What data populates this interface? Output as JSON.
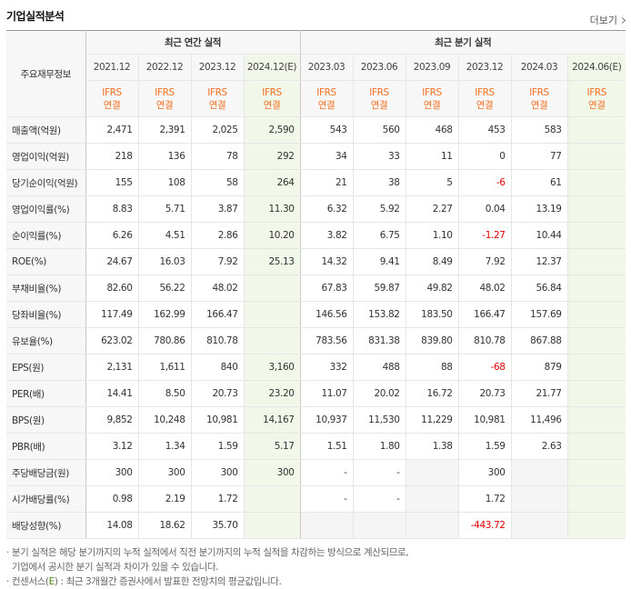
{
  "section_title": "기업실적분석",
  "more_link": "더보기",
  "header": {
    "item_label": "주요재무정보",
    "annual_group": "최근 연간 실적",
    "quarter_group": "최근 분기 실적",
    "annual_periods": [
      "2021.12",
      "2022.12",
      "2023.12",
      "2024.12(E)"
    ],
    "quarter_periods": [
      "2023.03",
      "2023.06",
      "2023.09",
      "2023.12",
      "2024.03",
      "2024.06(E)"
    ],
    "basis_top": "IFRS",
    "basis_bottom": "연결"
  },
  "rows": [
    {
      "label": "매출액(억원)",
      "annual": [
        "2,471",
        "2,391",
        "2,025",
        "2,590"
      ],
      "quarter": [
        "543",
        "560",
        "468",
        "453",
        "583",
        ""
      ]
    },
    {
      "label": "영업이익(억원)",
      "annual": [
        "218",
        "136",
        "78",
        "292"
      ],
      "quarter": [
        "34",
        "33",
        "11",
        "0",
        "77",
        ""
      ]
    },
    {
      "label": "당기순이익(억원)",
      "annual": [
        "155",
        "108",
        "58",
        "264"
      ],
      "quarter": [
        "21",
        "38",
        "5",
        "-6",
        "61",
        ""
      ]
    },
    {
      "label": "영업이익률(%)",
      "annual": [
        "8.83",
        "5.71",
        "3.87",
        "11.30"
      ],
      "quarter": [
        "6.32",
        "5.92",
        "2.27",
        "0.04",
        "13.19",
        ""
      ]
    },
    {
      "label": "순이익률(%)",
      "annual": [
        "6.26",
        "4.51",
        "2.86",
        "10.20"
      ],
      "quarter": [
        "3.82",
        "6.75",
        "1.10",
        "-1.27",
        "10.44",
        ""
      ]
    },
    {
      "label": "ROE(%)",
      "annual": [
        "24.67",
        "16.03",
        "7.92",
        "25.13"
      ],
      "quarter": [
        "14.32",
        "9.41",
        "8.49",
        "7.92",
        "12.37",
        ""
      ]
    },
    {
      "label": "부채비율(%)",
      "annual": [
        "82.60",
        "56.22",
        "48.02",
        ""
      ],
      "quarter": [
        "67.83",
        "59.87",
        "49.82",
        "48.02",
        "56.84",
        ""
      ]
    },
    {
      "label": "당좌비율(%)",
      "annual": [
        "117.49",
        "162.99",
        "166.47",
        ""
      ],
      "quarter": [
        "146.56",
        "153.82",
        "183.50",
        "166.47",
        "157.69",
        ""
      ]
    },
    {
      "label": "유보율(%)",
      "annual": [
        "623.02",
        "780.86",
        "810.78",
        ""
      ],
      "quarter": [
        "783.56",
        "831.38",
        "839.80",
        "810.78",
        "867.88",
        ""
      ]
    },
    {
      "label": "EPS(원)",
      "annual": [
        "2,131",
        "1,611",
        "840",
        "3,160"
      ],
      "quarter": [
        "332",
        "488",
        "88",
        "-68",
        "879",
        ""
      ]
    },
    {
      "label": "PER(배)",
      "annual": [
        "14.41",
        "8.50",
        "20.73",
        "23.20"
      ],
      "quarter": [
        "11.07",
        "20.02",
        "16.72",
        "20.73",
        "21.77",
        ""
      ]
    },
    {
      "label": "BPS(원)",
      "annual": [
        "9,852",
        "10,248",
        "10,981",
        "14,167"
      ],
      "quarter": [
        "10,937",
        "11,530",
        "11,229",
        "10,981",
        "11,496",
        ""
      ]
    },
    {
      "label": "PBR(배)",
      "annual": [
        "3.12",
        "1.34",
        "1.59",
        "5.17"
      ],
      "quarter": [
        "1.51",
        "1.80",
        "1.38",
        "1.59",
        "2.63",
        ""
      ]
    },
    {
      "label": "주당배당금(원)",
      "annual": [
        "300",
        "300",
        "300",
        "300"
      ],
      "quarter": [
        "-",
        "-",
        "",
        "300",
        "",
        ""
      ]
    },
    {
      "label": "시가배당률(%)",
      "annual": [
        "0.98",
        "2.19",
        "1.72",
        ""
      ],
      "quarter": [
        "-",
        "-",
        "",
        "1.72",
        "",
        ""
      ]
    },
    {
      "label": "배당성향(%)",
      "annual": [
        "14.08",
        "18.62",
        "35.70",
        ""
      ],
      "quarter": [
        "",
        "",
        "",
        "-443.72",
        "",
        ""
      ]
    }
  ],
  "notes": {
    "line1": "· 분기 실적은 해당 분기까지의 누적 실적에서 직전 분기까지의 누적 실적을 차감하는 방식으로 계산되므로,",
    "line2": "  기업에서 공시한 분기 실적과 차이가 있을 수 있습니다.",
    "line3_prefix": "· 컨센서스(",
    "line3_e": "E",
    "line3_suffix": ") : 최근 3개월간 증권사에서 발표한 전망치의 평균값입니다."
  },
  "colors": {
    "ifrs": "#f36f21",
    "negative": "#e40000",
    "estimate_bg": "#f1f7e9"
  }
}
